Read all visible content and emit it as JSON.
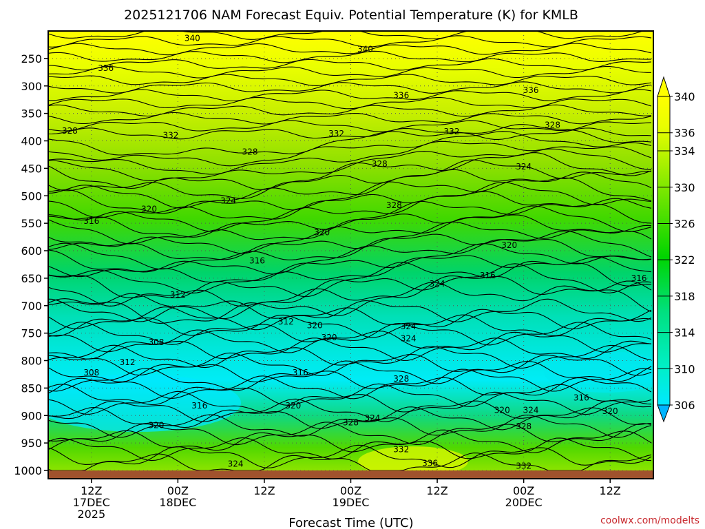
{
  "chart_data": {
    "type": "heatmap",
    "title": "2025121706 NAM Forecast Equiv. Potential Temperature (K) for KMLB",
    "xlabel": "Forecast Time (UTC)",
    "ylabel": "",
    "x_ticks": [
      {
        "line1": "12Z",
        "line2": "17DEC",
        "line3": "2025"
      },
      {
        "line1": "00Z",
        "line2": "18DEC",
        "line3": ""
      },
      {
        "line1": "12Z",
        "line2": "",
        "line3": ""
      },
      {
        "line1": "00Z",
        "line2": "19DEC",
        "line3": ""
      },
      {
        "line1": "12Z",
        "line2": "",
        "line3": ""
      },
      {
        "line1": "00Z",
        "line2": "20DEC",
        "line3": ""
      },
      {
        "line1": "12Z",
        "line2": "",
        "line3": ""
      }
    ],
    "x_tick_hours": [
      6,
      18,
      30,
      42,
      54,
      66,
      78
    ],
    "xlim_hours": [
      0,
      84
    ],
    "y_ticks": [
      250,
      300,
      350,
      400,
      450,
      500,
      550,
      600,
      650,
      700,
      750,
      800,
      850,
      900,
      950,
      1000
    ],
    "ylim_hpa": [
      200,
      1000
    ],
    "grid": true,
    "colorbar": {
      "ticks": [
        306,
        310,
        314,
        318,
        322,
        326,
        330,
        334,
        336,
        340
      ],
      "range": [
        306,
        340
      ]
    },
    "contour_labels": [
      {
        "text": "340",
        "hour": 20,
        "hpa": 213
      },
      {
        "text": "340",
        "hour": 44,
        "hpa": 233
      },
      {
        "text": "336",
        "hour": 8,
        "hpa": 268
      },
      {
        "text": "336",
        "hour": 49,
        "hpa": 317
      },
      {
        "text": "336",
        "hour": 67,
        "hpa": 308
      },
      {
        "text": "328",
        "hour": 3,
        "hpa": 382
      },
      {
        "text": "332",
        "hour": 17,
        "hpa": 390
      },
      {
        "text": "332",
        "hour": 40,
        "hpa": 387
      },
      {
        "text": "332",
        "hour": 56,
        "hpa": 383
      },
      {
        "text": "328",
        "hour": 70,
        "hpa": 371
      },
      {
        "text": "328",
        "hour": 28,
        "hpa": 420
      },
      {
        "text": "328",
        "hour": 46,
        "hpa": 442
      },
      {
        "text": "324",
        "hour": 66,
        "hpa": 447
      },
      {
        "text": "324",
        "hour": 25,
        "hpa": 509
      },
      {
        "text": "328",
        "hour": 48,
        "hpa": 517
      },
      {
        "text": "320",
        "hour": 14,
        "hpa": 524
      },
      {
        "text": "316",
        "hour": 6,
        "hpa": 546
      },
      {
        "text": "320",
        "hour": 38,
        "hpa": 567
      },
      {
        "text": "320",
        "hour": 64,
        "hpa": 590
      },
      {
        "text": "316",
        "hour": 29,
        "hpa": 618
      },
      {
        "text": "316",
        "hour": 61,
        "hpa": 645
      },
      {
        "text": "316",
        "hour": 82,
        "hpa": 650
      },
      {
        "text": "324",
        "hour": 54,
        "hpa": 660
      },
      {
        "text": "312",
        "hour": 18,
        "hpa": 680
      },
      {
        "text": "312",
        "hour": 33,
        "hpa": 729
      },
      {
        "text": "320",
        "hour": 37,
        "hpa": 736
      },
      {
        "text": "324",
        "hour": 50,
        "hpa": 738
      },
      {
        "text": "320",
        "hour": 39,
        "hpa": 758
      },
      {
        "text": "324",
        "hour": 50,
        "hpa": 760
      },
      {
        "text": "308",
        "hour": 15,
        "hpa": 767
      },
      {
        "text": "312",
        "hour": 11,
        "hpa": 803
      },
      {
        "text": "308",
        "hour": 6,
        "hpa": 822
      },
      {
        "text": "316",
        "hour": 35,
        "hpa": 822
      },
      {
        "text": "328",
        "hour": 49,
        "hpa": 833
      },
      {
        "text": "316",
        "hour": 74,
        "hpa": 868
      },
      {
        "text": "316",
        "hour": 21,
        "hpa": 882
      },
      {
        "text": "320",
        "hour": 34,
        "hpa": 882
      },
      {
        "text": "320",
        "hour": 63,
        "hpa": 890
      },
      {
        "text": "324",
        "hour": 67,
        "hpa": 890
      },
      {
        "text": "320",
        "hour": 78,
        "hpa": 892
      },
      {
        "text": "328",
        "hour": 42,
        "hpa": 913
      },
      {
        "text": "324",
        "hour": 45,
        "hpa": 905
      },
      {
        "text": "328",
        "hour": 66,
        "hpa": 920
      },
      {
        "text": "320",
        "hour": 15,
        "hpa": 918
      },
      {
        "text": "332",
        "hour": 49,
        "hpa": 962
      },
      {
        "text": "324",
        "hour": 26,
        "hpa": 988
      },
      {
        "text": "336",
        "hour": 53,
        "hpa": 987
      },
      {
        "text": "332",
        "hour": 66,
        "hpa": 992
      }
    ]
  },
  "credit": "coolwx.com/modelts"
}
